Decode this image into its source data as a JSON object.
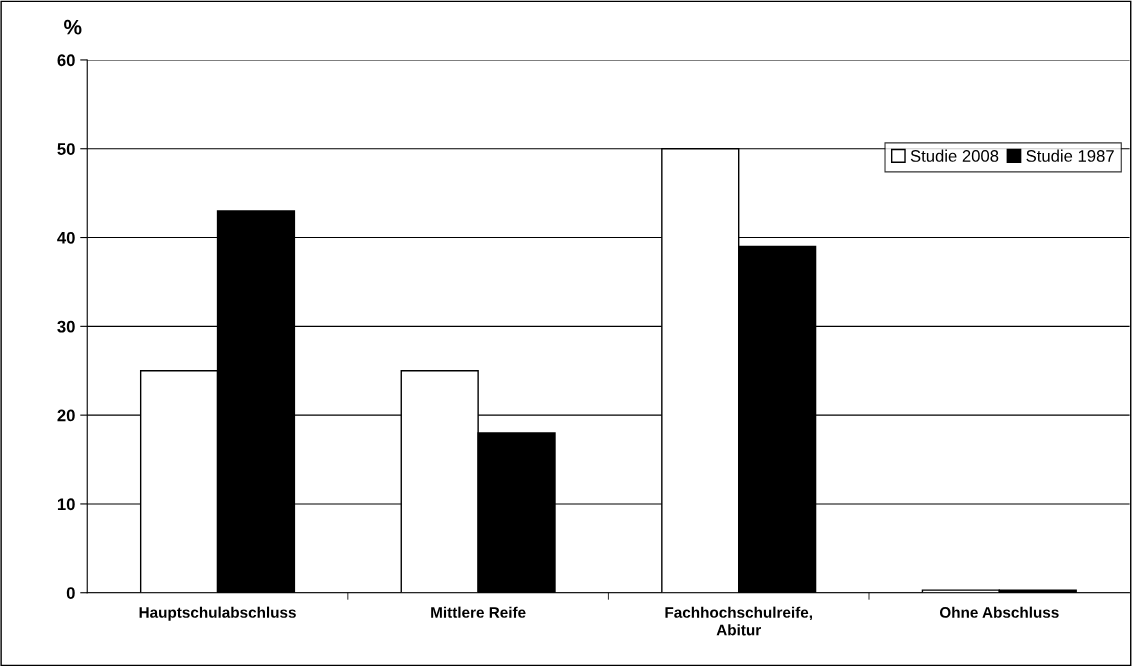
{
  "chart_data": {
    "type": "bar",
    "ylabel": "%",
    "categories": [
      "Hauptschulabschluss",
      "Mittlere Reife",
      "Fachhochschulreife,\nAbitur",
      "Ohne Abschluss"
    ],
    "series": [
      {
        "name": "Studie 2008",
        "color": "#ffffff",
        "values": [
          25,
          25,
          50,
          0.3
        ]
      },
      {
        "name": "Studie 1987",
        "color": "#000000",
        "values": [
          43,
          18,
          39,
          0.3
        ]
      }
    ],
    "ylim": [
      0,
      60
    ],
    "yticks": [
      0,
      10,
      20,
      30,
      40,
      50,
      60
    ],
    "grid": "y",
    "legend": "top right"
  }
}
